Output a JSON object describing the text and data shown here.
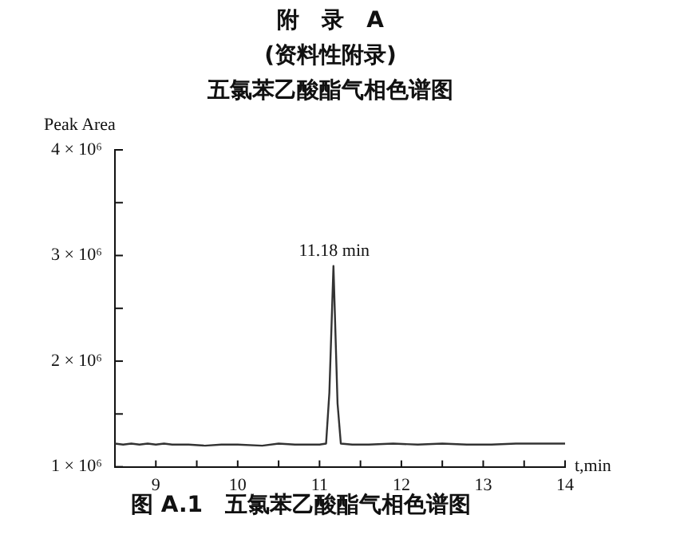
{
  "chart_data": {
    "type": "line",
    "title": "附　录　A",
    "subtitle": "(资料性附录)",
    "annotations": [
      "五氯苯乙酸酯气相色谱图",
      {
        "text": "11.18 min",
        "x": 11.18,
        "y": 2900000
      },
      "图 A.1　五氯苯乙酸酯气相色谱图"
    ],
    "xlabel": "t,min",
    "ylabel": "Peak Area",
    "x": [
      8.5,
      8.6,
      8.7,
      8.8,
      8.9,
      9.0,
      9.1,
      9.2,
      9.4,
      9.6,
      9.8,
      10.0,
      10.3,
      10.5,
      10.7,
      11.0,
      11.08,
      11.12,
      11.17,
      11.22,
      11.26,
      11.4,
      11.6,
      11.9,
      12.2,
      12.5,
      12.8,
      13.1,
      13.4,
      13.7,
      14.0
    ],
    "series": [
      {
        "color": "#333333",
        "values": [
          1220000,
          1210000,
          1220000,
          1210000,
          1220000,
          1210000,
          1220000,
          1210000,
          1210000,
          1200000,
          1210000,
          1210000,
          1200000,
          1220000,
          1210000,
          1210000,
          1220000,
          1700000,
          2900000,
          1600000,
          1220000,
          1210000,
          1210000,
          1220000,
          1210000,
          1220000,
          1210000,
          1210000,
          1220000,
          1220000,
          1220000
        ]
      }
    ],
    "xlim": [
      8.5,
      14
    ],
    "xticks": [
      {
        "value": 8.5,
        "label": null
      },
      9,
      {
        "value": 9.5,
        "label": null
      },
      10,
      {
        "value": 10.5,
        "label": null
      },
      11,
      {
        "value": 11.5,
        "label": null
      },
      12,
      {
        "value": 12.5,
        "label": null
      },
      13,
      {
        "value": 13.5,
        "label": null
      },
      14
    ],
    "ylim": [
      1000000,
      4000000
    ],
    "yticks": [
      {
        "value": 1000000,
        "label": "1 × 10⁶"
      },
      {
        "value": 1500000,
        "label": null
      },
      {
        "value": 2000000,
        "label": "2 × 10⁶"
      },
      {
        "value": 2500000,
        "label": null
      },
      {
        "value": 3000000,
        "label": "3 × 10⁶"
      },
      {
        "value": 3500000,
        "label": null
      },
      {
        "value": 4000000,
        "label": "4 × 10⁶"
      }
    ],
    "grid": false,
    "legend": false,
    "marker": "none",
    "line_style": "solid"
  }
}
